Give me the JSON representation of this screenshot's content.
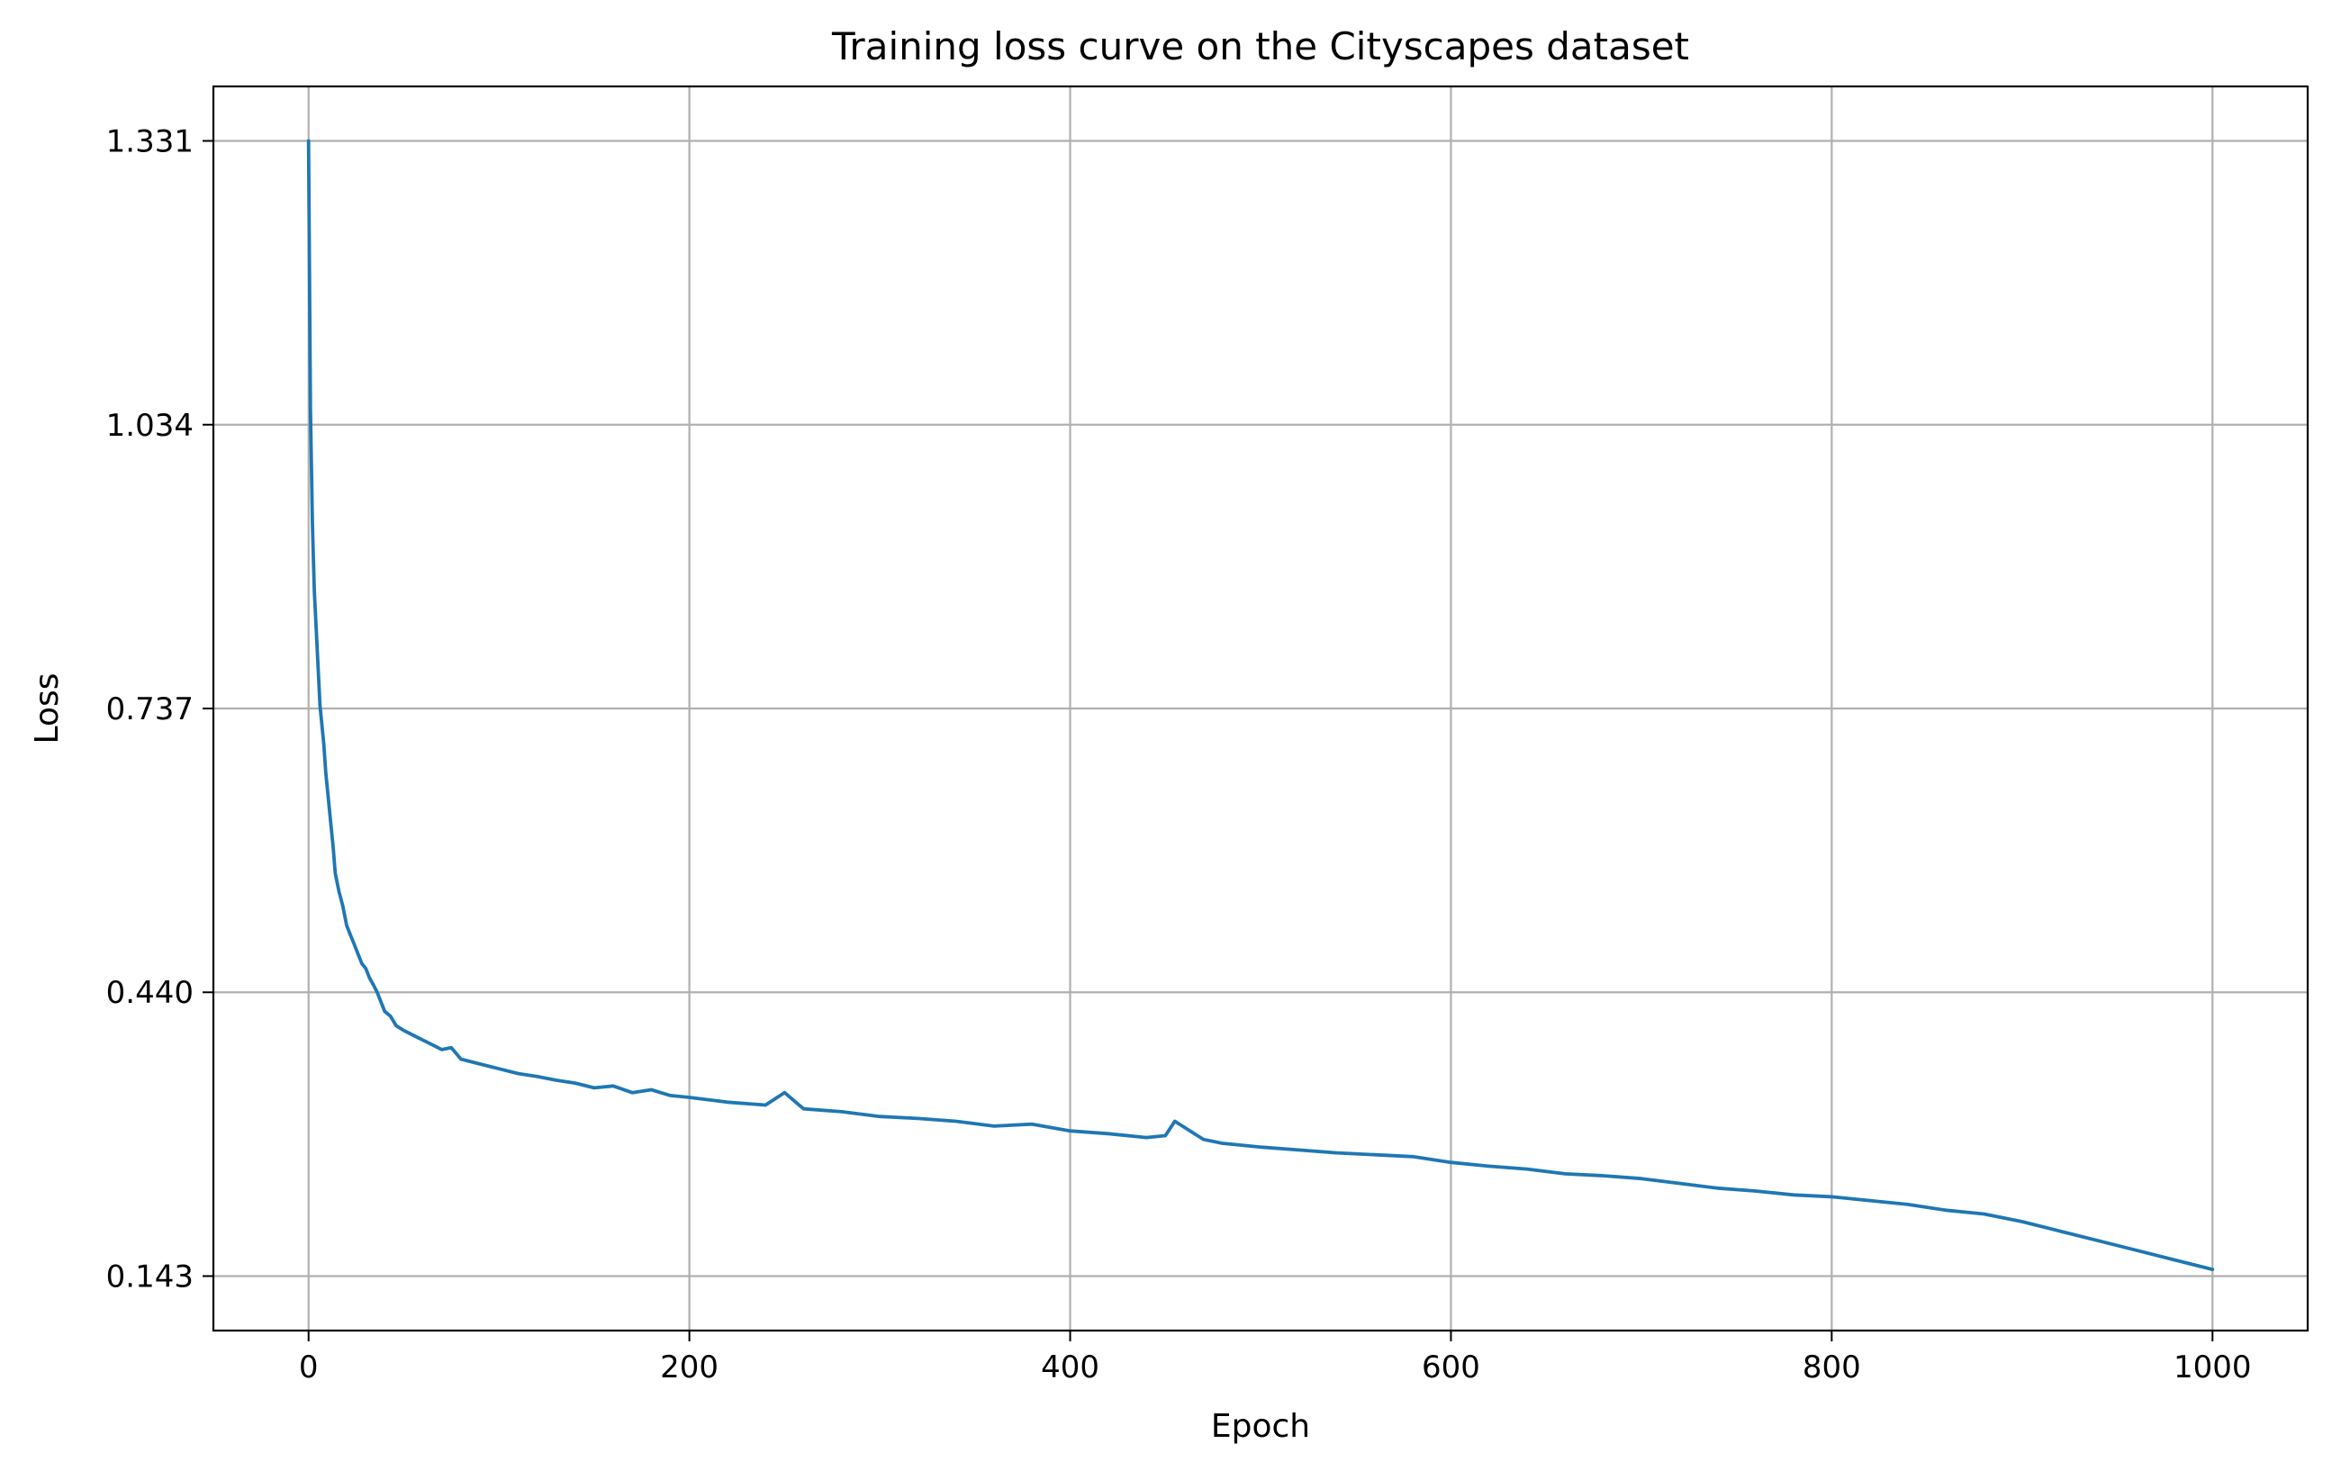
{
  "chart_data": {
    "type": "line",
    "title": "Training loss curve on the Cityscapes dataset",
    "xlabel": "Epoch",
    "ylabel": "Loss",
    "xlim": [
      -50,
      1050
    ],
    "ylim": [
      0.086,
      1.388
    ],
    "x_ticks": [
      0,
      200,
      400,
      600,
      800,
      1000
    ],
    "x_tick_labels": [
      "0",
      "200",
      "400",
      "600",
      "800",
      "1000"
    ],
    "y_ticks": [
      0.143,
      0.44,
      0.737,
      1.034,
      1.331
    ],
    "y_tick_labels": [
      "0.143",
      "0.440",
      "0.737",
      "1.034",
      "1.331"
    ],
    "grid": true,
    "colors": {
      "series": "#1f77b4",
      "grid": "#b0b0b0",
      "frame": "#000000"
    },
    "series": [
      {
        "x": [
          0,
          1,
          2,
          3,
          4,
          5,
          6,
          7,
          8,
          9,
          10,
          11,
          12,
          13,
          14,
          15,
          16,
          18,
          20,
          22,
          24,
          26,
          28,
          30,
          32,
          34,
          36,
          38,
          40,
          43,
          46,
          50,
          55,
          60,
          65,
          70,
          75,
          80,
          90,
          100,
          110,
          120,
          130,
          140,
          150,
          160,
          170,
          180,
          190,
          200,
          220,
          240,
          250,
          260,
          280,
          300,
          320,
          340,
          360,
          380,
          400,
          420,
          440,
          450,
          455,
          470,
          480,
          500,
          520,
          540,
          560,
          580,
          600,
          620,
          640,
          660,
          680,
          700,
          720,
          740,
          760,
          780,
          800,
          820,
          840,
          860,
          880,
          900,
          920,
          940,
          960,
          980,
          1000
        ],
        "y": [
          1.331,
          1.05,
          0.93,
          0.86,
          0.82,
          0.78,
          0.74,
          0.72,
          0.7,
          0.67,
          0.65,
          0.63,
          0.61,
          0.59,
          0.565,
          0.555,
          0.545,
          0.53,
          0.51,
          0.5,
          0.49,
          0.48,
          0.47,
          0.465,
          0.455,
          0.448,
          0.44,
          0.43,
          0.42,
          0.415,
          0.405,
          0.4,
          0.395,
          0.39,
          0.385,
          0.38,
          0.382,
          0.37,
          0.365,
          0.36,
          0.355,
          0.352,
          0.348,
          0.345,
          0.34,
          0.342,
          0.335,
          0.338,
          0.332,
          0.33,
          0.325,
          0.322,
          0.335,
          0.318,
          0.315,
          0.31,
          0.308,
          0.305,
          0.3,
          0.302,
          0.295,
          0.292,
          0.288,
          0.29,
          0.305,
          0.286,
          0.282,
          0.278,
          0.275,
          0.272,
          0.27,
          0.268,
          0.262,
          0.258,
          0.255,
          0.25,
          0.248,
          0.245,
          0.24,
          0.235,
          0.232,
          0.228,
          0.226,
          0.222,
          0.218,
          0.212,
          0.208,
          0.2,
          0.19,
          0.18,
          0.17,
          0.16,
          0.15
        ]
      }
    ]
  }
}
